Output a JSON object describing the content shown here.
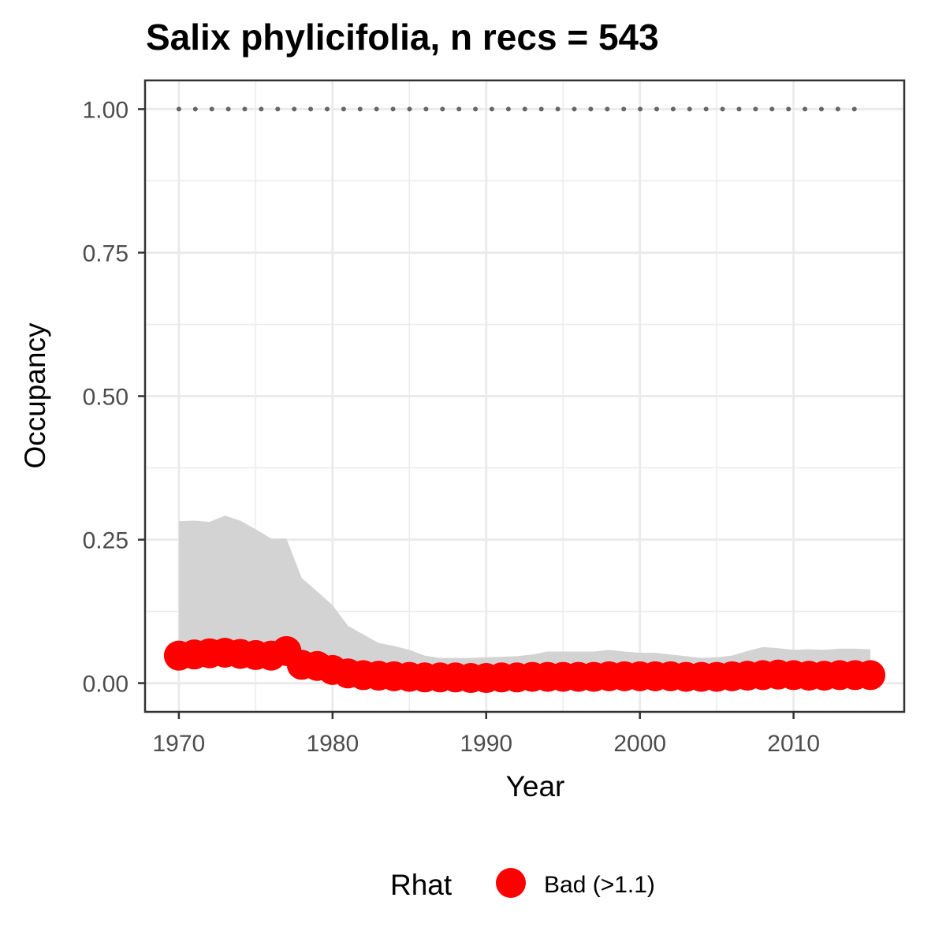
{
  "chart_data": {
    "type": "line",
    "title": "Salix phylicifolia, n recs = 543",
    "xlabel": "Year",
    "ylabel": "Occupancy",
    "xlim": [
      1967.8,
      2017.2
    ],
    "ylim": [
      -0.05,
      1.05
    ],
    "x_ticks": [
      1970,
      1980,
      1990,
      2000,
      2010
    ],
    "x_tick_labels": [
      "1970",
      "1980",
      "1990",
      "2000",
      "2010"
    ],
    "y_ticks": [
      0,
      0.25,
      0.5,
      0.75,
      1.0
    ],
    "y_tick_labels": [
      "0.00",
      "0.25",
      "0.50",
      "0.75",
      "1.00"
    ],
    "grid": true,
    "legend": {
      "title": "Rhat",
      "entries": [
        "Bad (>1.1)"
      ],
      "position": "bottom"
    },
    "colors": {
      "point": "#ff0000",
      "ribbon": "#d3d3d3",
      "reference": "#666666",
      "panel_border": "#333333",
      "grid": "#ebebeb"
    },
    "reference_line": {
      "y": 1.0,
      "style": "dotted",
      "x_range": [
        1970,
        2015
      ]
    },
    "x": [
      1970,
      1971,
      1972,
      1973,
      1974,
      1975,
      1976,
      1977,
      1978,
      1979,
      1980,
      1981,
      1982,
      1983,
      1984,
      1985,
      1986,
      1987,
      1988,
      1989,
      1990,
      1991,
      1992,
      1993,
      1994,
      1995,
      1996,
      1997,
      1998,
      1999,
      2000,
      2001,
      2002,
      2003,
      2004,
      2005,
      2006,
      2007,
      2008,
      2009,
      2010,
      2011,
      2012,
      2013,
      2014,
      2015
    ],
    "series": [
      {
        "name": "Bad (>1.1)",
        "values": [
          0.048,
          0.05,
          0.052,
          0.053,
          0.051,
          0.049,
          0.048,
          0.056,
          0.032,
          0.03,
          0.023,
          0.017,
          0.014,
          0.013,
          0.012,
          0.011,
          0.01,
          0.01,
          0.01,
          0.009,
          0.009,
          0.01,
          0.01,
          0.011,
          0.011,
          0.011,
          0.011,
          0.011,
          0.012,
          0.012,
          0.012,
          0.012,
          0.012,
          0.011,
          0.011,
          0.011,
          0.012,
          0.013,
          0.014,
          0.015,
          0.014,
          0.013,
          0.013,
          0.014,
          0.014,
          0.014
        ],
        "lower": [
          0.04,
          0.04,
          0.04,
          0.04,
          0.04,
          0.04,
          0.04,
          0.04,
          0.025,
          0.02,
          0.015,
          0.01,
          0.008,
          0.006,
          0.005,
          0.004,
          0.003,
          0.003,
          0.003,
          0.003,
          0.003,
          0.003,
          0.003,
          0.003,
          0.003,
          0.003,
          0.003,
          0.003,
          0.003,
          0.003,
          0.003,
          0.003,
          0.003,
          0.003,
          0.003,
          0.003,
          0.003,
          0.003,
          0.003,
          0.003,
          0.003,
          0.003,
          0.003,
          0.003,
          0.003,
          0.003
        ],
        "upper": [
          0.282,
          0.283,
          0.281,
          0.292,
          0.283,
          0.268,
          0.252,
          0.252,
          0.183,
          0.16,
          0.136,
          0.1,
          0.085,
          0.07,
          0.065,
          0.058,
          0.048,
          0.044,
          0.044,
          0.044,
          0.045,
          0.046,
          0.047,
          0.05,
          0.055,
          0.055,
          0.055,
          0.055,
          0.058,
          0.055,
          0.053,
          0.053,
          0.05,
          0.047,
          0.044,
          0.045,
          0.048,
          0.056,
          0.063,
          0.061,
          0.058,
          0.059,
          0.058,
          0.06,
          0.06,
          0.059
        ]
      }
    ]
  }
}
